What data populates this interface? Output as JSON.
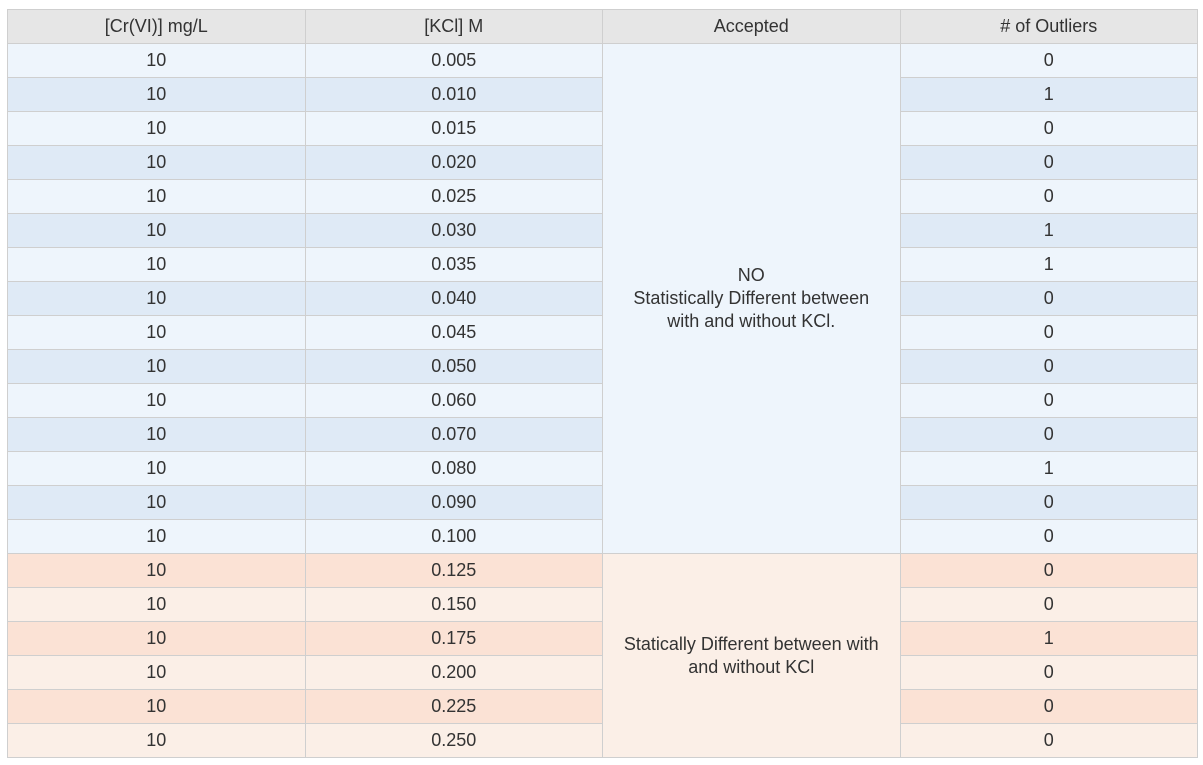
{
  "columns": [
    "[Cr(VI)] mg/L",
    "[KCl] M",
    "Accepted",
    "# of Outliers"
  ],
  "group1": {
    "accepted_lines": [
      "NO",
      "Statistically Different between",
      "with and without KCl."
    ],
    "rows": [
      {
        "cr": "10",
        "kcl": "0.005",
        "outliers": "0"
      },
      {
        "cr": "10",
        "kcl": "0.010",
        "outliers": "1"
      },
      {
        "cr": "10",
        "kcl": "0.015",
        "outliers": "0"
      },
      {
        "cr": "10",
        "kcl": "0.020",
        "outliers": "0"
      },
      {
        "cr": "10",
        "kcl": "0.025",
        "outliers": "0"
      },
      {
        "cr": "10",
        "kcl": "0.030",
        "outliers": "1"
      },
      {
        "cr": "10",
        "kcl": "0.035",
        "outliers": "1"
      },
      {
        "cr": "10",
        "kcl": "0.040",
        "outliers": "0"
      },
      {
        "cr": "10",
        "kcl": "0.045",
        "outliers": "0"
      },
      {
        "cr": "10",
        "kcl": "0.050",
        "outliers": "0"
      },
      {
        "cr": "10",
        "kcl": "0.060",
        "outliers": "0"
      },
      {
        "cr": "10",
        "kcl": "0.070",
        "outliers": "0"
      },
      {
        "cr": "10",
        "kcl": "0.080",
        "outliers": "1"
      },
      {
        "cr": "10",
        "kcl": "0.090",
        "outliers": "0"
      },
      {
        "cr": "10",
        "kcl": "0.100",
        "outliers": "0"
      }
    ]
  },
  "group2": {
    "accepted_lines": [
      "Statically Different between with",
      "and without KCl"
    ],
    "rows": [
      {
        "cr": "10",
        "kcl": "0.125",
        "outliers": "0"
      },
      {
        "cr": "10",
        "kcl": "0.150",
        "outliers": "0"
      },
      {
        "cr": "10",
        "kcl": "0.175",
        "outliers": "1"
      },
      {
        "cr": "10",
        "kcl": "0.200",
        "outliers": "0"
      },
      {
        "cr": "10",
        "kcl": "0.225",
        "outliers": "0"
      },
      {
        "cr": "10",
        "kcl": "0.250",
        "outliers": "0"
      }
    ]
  },
  "colors": {
    "header_bg": "#e6e6e6",
    "blue_row_light": "#eef5fc",
    "blue_row_dark": "#dfeaf6",
    "orange_row_dark": "#fbe2d5",
    "orange_row_light": "#fbefe7",
    "text": "#333333"
  }
}
